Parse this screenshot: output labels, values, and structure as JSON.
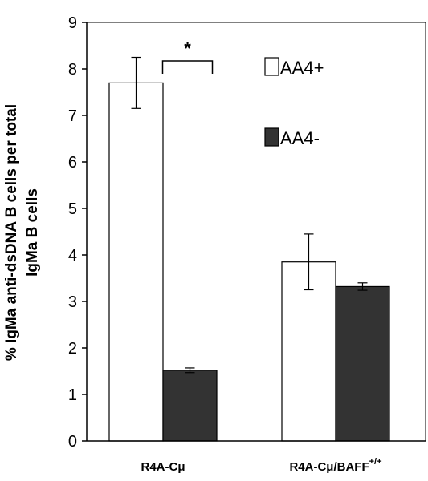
{
  "chart_data": {
    "type": "bar",
    "title": "",
    "ylabel_lines": [
      "% IgMa anti-dsDNA B cells per total",
      "IgMa B cells"
    ],
    "xlabel": "",
    "ylim": [
      0,
      9
    ],
    "yticks": [
      0,
      1,
      2,
      3,
      4,
      5,
      6,
      7,
      8,
      9
    ],
    "grid": false,
    "legend_position": "top-right",
    "categories": [
      {
        "main": "R4A-Cμ",
        "sup": ""
      },
      {
        "main": "R4A-Cμ/BAFF",
        "sup": "+/+"
      }
    ],
    "series": [
      {
        "name": "AA4+",
        "fill": "#ffffff",
        "values": [
          7.7,
          3.85
        ],
        "errors": [
          0.55,
          0.6
        ]
      },
      {
        "name": "AA4-",
        "fill": "#333333",
        "values": [
          1.52,
          3.32
        ],
        "errors": [
          0.05,
          0.08
        ]
      }
    ],
    "annotations": [
      {
        "text": "*",
        "category_index": 0
      }
    ],
    "colors": {
      "axis": "#000000",
      "bar_edge": "#000000"
    }
  }
}
